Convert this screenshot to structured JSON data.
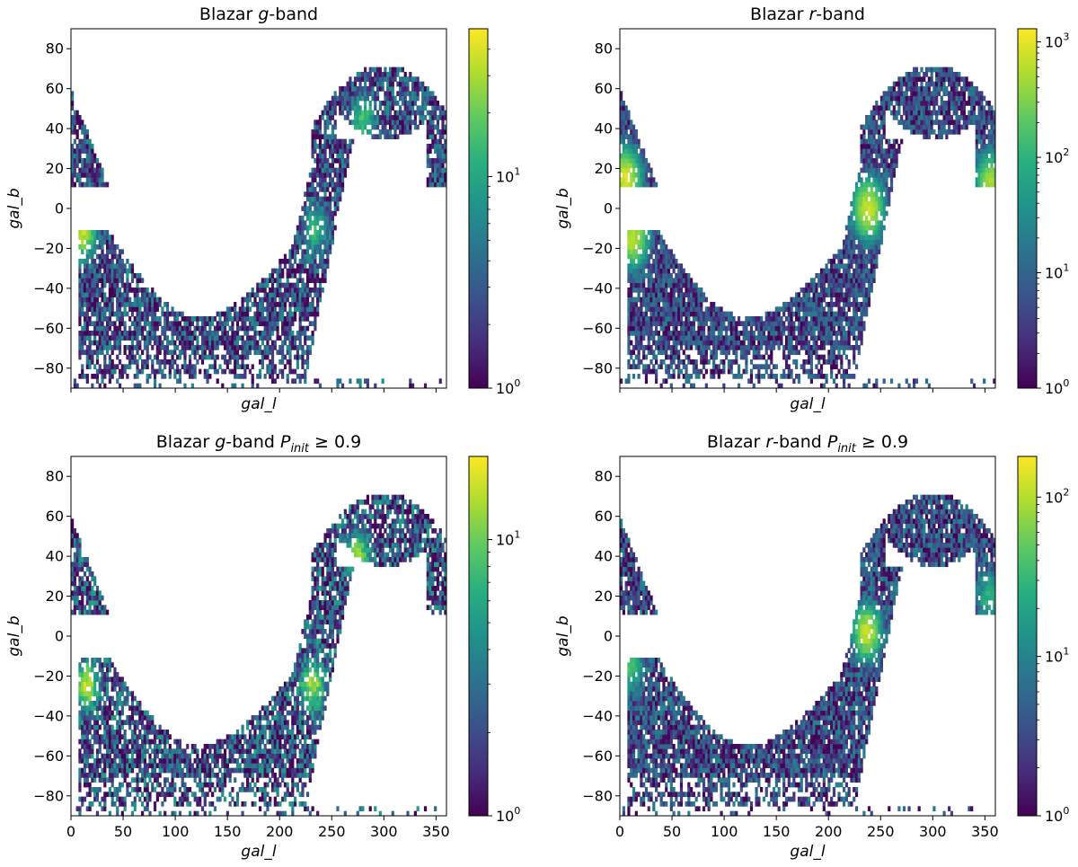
{
  "figure": {
    "panels": [
      {
        "title_parts": [
          "Blazar ",
          "g",
          "-band"
        ],
        "xlabel": "gal_l",
        "ylabel": "gal_b",
        "show_x_ticklabels": false,
        "colorbar": {
          "scale": "log",
          "min": 1,
          "max": 50,
          "tick_labels": [
            {
              "base": "10",
              "exp": "0",
              "value": 1
            },
            {
              "base": "10",
              "exp": "1",
              "value": 10
            }
          ]
        }
      },
      {
        "title_parts": [
          "Blazar ",
          "r",
          "-band"
        ],
        "xlabel": "gal_l",
        "ylabel": "gal_b",
        "show_x_ticklabels": false,
        "colorbar": {
          "scale": "log",
          "min": 1,
          "max": 1300,
          "tick_labels": [
            {
              "base": "10",
              "exp": "0",
              "value": 1
            },
            {
              "base": "10",
              "exp": "1",
              "value": 10
            },
            {
              "base": "10",
              "exp": "2",
              "value": 100
            },
            {
              "base": "10",
              "exp": "3",
              "value": 1000
            }
          ]
        }
      },
      {
        "title_parts": [
          "Blazar ",
          "g",
          "-band ",
          "P",
          "init",
          " ≥ 0.9"
        ],
        "xlabel": "gal_l",
        "ylabel": "gal_b",
        "show_x_ticklabels": true,
        "colorbar": {
          "scale": "log",
          "min": 1,
          "max": 20,
          "tick_labels": [
            {
              "base": "10",
              "exp": "0",
              "value": 1
            },
            {
              "base": "10",
              "exp": "1",
              "value": 10
            }
          ]
        }
      },
      {
        "title_parts": [
          "Blazar ",
          "r",
          "-band ",
          "P",
          "init",
          " ≥ 0.9"
        ],
        "xlabel": "gal_l",
        "ylabel": "gal_b",
        "show_x_ticklabels": true,
        "colorbar": {
          "scale": "log",
          "min": 1,
          "max": 180,
          "tick_labels": [
            {
              "base": "10",
              "exp": "0",
              "value": 1
            },
            {
              "base": "10",
              "exp": "1",
              "value": 10
            },
            {
              "base": "10",
              "exp": "2",
              "value": 100
            }
          ]
        }
      }
    ]
  },
  "chart_data": [
    {
      "type": "heatmap",
      "title": "Blazar g-band",
      "xlabel": "gal_l",
      "ylabel": "gal_b",
      "xlim": [
        0,
        360
      ],
      "ylim": [
        -90,
        90
      ],
      "x_ticks": [
        0,
        50,
        100,
        150,
        200,
        250,
        300,
        350
      ],
      "y_ticks": [
        -80,
        -60,
        -40,
        -20,
        0,
        20,
        40,
        60,
        80
      ],
      "colormap": "viridis",
      "color_scale": "log",
      "color_range": [
        1,
        50
      ],
      "hotspots": [
        {
          "gal_l": 12,
          "gal_b": -12,
          "count": 40
        },
        {
          "gal_l": 235,
          "gal_b": -10,
          "count": 12
        },
        {
          "gal_l": 280,
          "gal_b": 45,
          "count": 15
        }
      ]
    },
    {
      "type": "heatmap",
      "title": "Blazar r-band",
      "xlabel": "gal_l",
      "ylabel": "gal_b",
      "xlim": [
        0,
        360
      ],
      "ylim": [
        -90,
        90
      ],
      "x_ticks": [
        0,
        50,
        100,
        150,
        200,
        250,
        300,
        350
      ],
      "y_ticks": [
        -80,
        -60,
        -40,
        -20,
        0,
        20,
        40,
        60,
        80
      ],
      "colormap": "viridis",
      "color_scale": "log",
      "color_range": [
        1,
        1300
      ],
      "hotspots": [
        {
          "gal_l": 5,
          "gal_b": 15,
          "count": 1000
        },
        {
          "gal_l": 12,
          "gal_b": -14,
          "count": 800
        },
        {
          "gal_l": 238,
          "gal_b": 0,
          "count": 900
        },
        {
          "gal_l": 356,
          "gal_b": 13,
          "count": 600
        }
      ]
    },
    {
      "type": "heatmap",
      "title": "Blazar g-band P_init ≥ 0.9",
      "xlabel": "gal_l",
      "ylabel": "gal_b",
      "xlim": [
        0,
        360
      ],
      "ylim": [
        -90,
        90
      ],
      "x_ticks": [
        0,
        50,
        100,
        150,
        200,
        250,
        300,
        350
      ],
      "y_ticks": [
        -80,
        -60,
        -40,
        -20,
        0,
        20,
        40,
        60,
        80
      ],
      "colormap": "viridis",
      "color_scale": "log",
      "color_range": [
        1,
        20
      ],
      "hotspots": [
        {
          "gal_l": 15,
          "gal_b": -25,
          "count": 15
        },
        {
          "gal_l": 232,
          "gal_b": -25,
          "count": 14
        },
        {
          "gal_l": 275,
          "gal_b": 40,
          "count": 14
        }
      ]
    },
    {
      "type": "heatmap",
      "title": "Blazar r-band P_init ≥ 0.9",
      "xlabel": "gal_l",
      "ylabel": "gal_b",
      "xlim": [
        0,
        360
      ],
      "ylim": [
        -90,
        90
      ],
      "x_ticks": [
        0,
        50,
        100,
        150,
        200,
        250,
        300,
        350
      ],
      "y_ticks": [
        -80,
        -60,
        -40,
        -20,
        0,
        20,
        40,
        60,
        80
      ],
      "colormap": "viridis",
      "color_scale": "log",
      "color_range": [
        1,
        180
      ],
      "hotspots": [
        {
          "gal_l": 237,
          "gal_b": 2,
          "count": 150
        },
        {
          "gal_l": 10,
          "gal_b": -15,
          "count": 40
        },
        {
          "gal_l": 355,
          "gal_b": 20,
          "count": 30
        }
      ]
    }
  ]
}
